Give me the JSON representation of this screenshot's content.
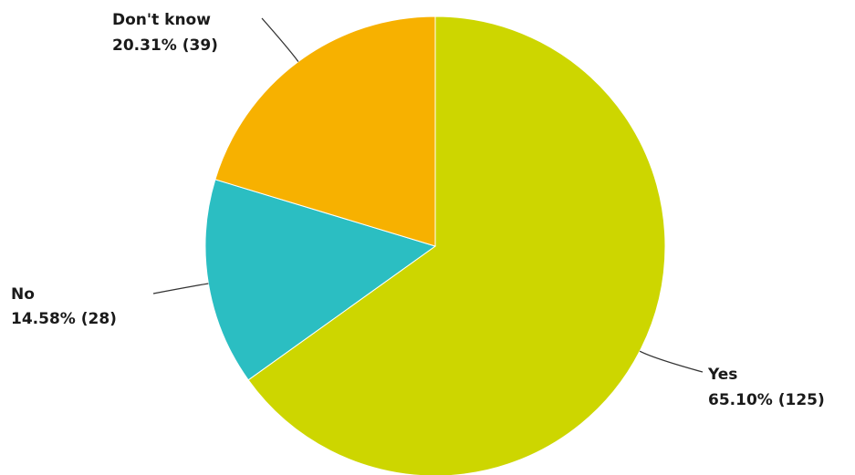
{
  "chart_data": {
    "type": "pie",
    "title": "",
    "slices": [
      {
        "label": "Yes",
        "value_label": "65.10% (125)",
        "percent": 65.1,
        "count": 125,
        "color": "#cdd600"
      },
      {
        "label": "No",
        "value_label": "14.58% (28)",
        "percent": 14.58,
        "count": 28,
        "color": "#2bbec2"
      },
      {
        "label": "Don't know",
        "value_label": "20.31% (39)",
        "percent": 20.31,
        "count": 39,
        "color": "#f7b100"
      }
    ],
    "legend": "none",
    "start_angle_deg": 0,
    "direction": "clockwise"
  }
}
